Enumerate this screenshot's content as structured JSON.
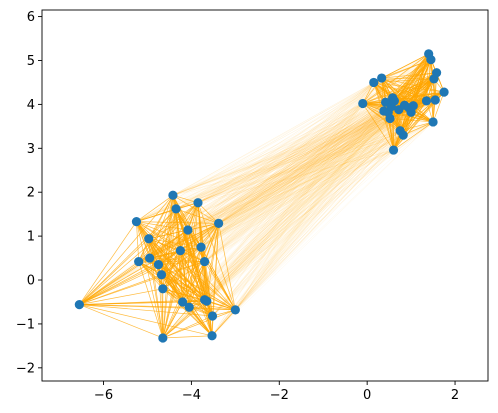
{
  "chart_data": {
    "type": "scatter",
    "title": "",
    "xlabel": "",
    "ylabel": "",
    "xlim": [
      -7.4,
      2.75
    ],
    "ylim": [
      -2.3,
      6.15
    ],
    "xticks": [
      -6,
      -4,
      -2,
      0,
      2
    ],
    "yticks": [
      -2,
      -1,
      0,
      1,
      2,
      3,
      4,
      5,
      6
    ],
    "xtick_labels": [
      "−6",
      "−4",
      "−2",
      "0",
      "2"
    ],
    "ytick_labels": [
      "−2",
      "−1",
      "0",
      "1",
      "2",
      "3",
      "4",
      "5",
      "6"
    ],
    "grid": false,
    "legend": "none",
    "colors": {
      "points": "#1f77b4",
      "edges": "#ffa500"
    },
    "edges": "approximately all pairs connected with thin orange lines, denser within each cluster",
    "clusters": [
      {
        "name": "",
        "points": [
          [
            -6.55,
            -0.56
          ],
          [
            -5.25,
            1.33
          ],
          [
            -5.2,
            0.42
          ],
          [
            -4.97,
            0.94
          ],
          [
            -4.95,
            0.5
          ],
          [
            -4.75,
            0.35
          ],
          [
            -4.68,
            0.12
          ],
          [
            -4.65,
            -0.2
          ],
          [
            -4.65,
            -1.32
          ],
          [
            -4.42,
            1.93
          ],
          [
            -4.35,
            1.62
          ],
          [
            -4.25,
            0.67
          ],
          [
            -4.2,
            -0.5
          ],
          [
            -4.08,
            1.14
          ],
          [
            -4.05,
            -0.62
          ],
          [
            -3.85,
            1.76
          ],
          [
            -3.78,
            0.75
          ],
          [
            -3.7,
            0.42
          ],
          [
            -3.7,
            -0.45
          ],
          [
            -3.65,
            -0.48
          ],
          [
            -3.52,
            -0.82
          ],
          [
            -3.53,
            -1.27
          ],
          [
            -3.38,
            1.29
          ],
          [
            -3.0,
            -0.68
          ]
        ]
      },
      {
        "name": "",
        "points": [
          [
            -0.1,
            4.02
          ],
          [
            0.15,
            4.5
          ],
          [
            0.33,
            4.6
          ],
          [
            0.38,
            3.85
          ],
          [
            0.42,
            4.05
          ],
          [
            0.48,
            3.82
          ],
          [
            0.52,
            3.68
          ],
          [
            0.55,
            3.95
          ],
          [
            0.58,
            4.15
          ],
          [
            0.62,
            4.08
          ],
          [
            0.6,
            2.96
          ],
          [
            0.72,
            3.88
          ],
          [
            0.75,
            3.4
          ],
          [
            0.82,
            3.3
          ],
          [
            0.85,
            3.98
          ],
          [
            0.95,
            3.92
          ],
          [
            1.0,
            3.82
          ],
          [
            1.05,
            3.97
          ],
          [
            1.35,
            4.08
          ],
          [
            1.4,
            5.15
          ],
          [
            1.45,
            5.02
          ],
          [
            1.5,
            3.6
          ],
          [
            1.52,
            4.58
          ],
          [
            1.55,
            4.1
          ],
          [
            1.58,
            4.72
          ],
          [
            1.75,
            4.28
          ]
        ]
      }
    ]
  }
}
